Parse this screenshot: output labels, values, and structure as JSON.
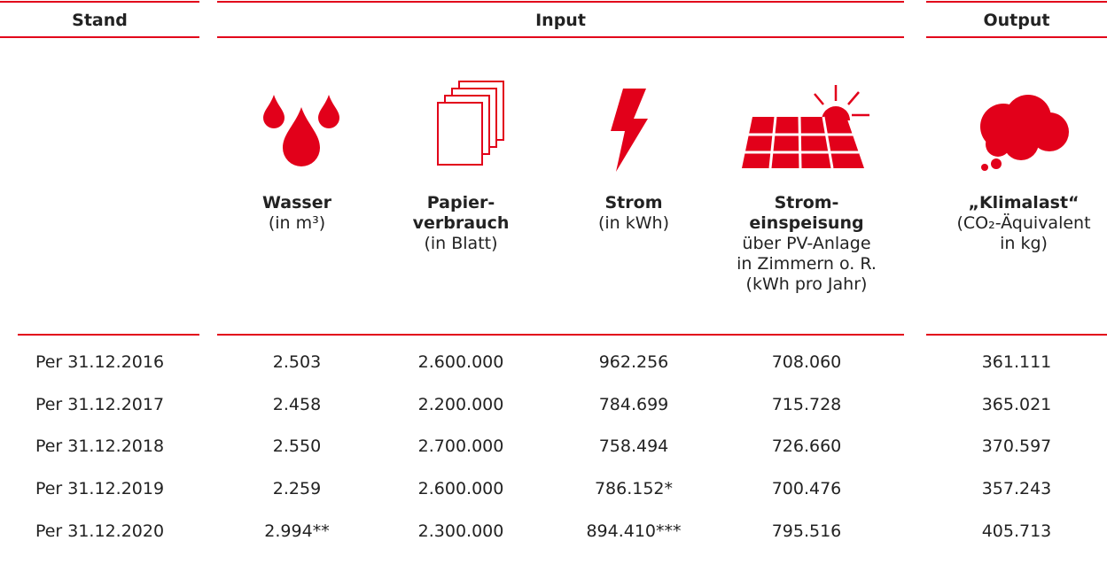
{
  "header": {
    "stand": "Stand",
    "input": "Input",
    "output": "Output"
  },
  "columns": [
    {
      "title": [
        "Wasser"
      ],
      "sub": [
        "(in m³)"
      ]
    },
    {
      "title": [
        "Papier-",
        "verbrauch"
      ],
      "sub": [
        "(in Blatt)"
      ]
    },
    {
      "title": [
        "Strom"
      ],
      "sub": [
        "(in kWh)"
      ]
    },
    {
      "title": [
        "Strom-",
        "einspeisung"
      ],
      "sub": [
        "über PV-Anlage",
        "in Zimmern o. R.",
        "(kWh pro Jahr)"
      ]
    },
    {
      "title": [
        "„Klimalast“"
      ],
      "sub": [
        "(CO₂-Äquivalent",
        "in kg)"
      ]
    }
  ],
  "rows": [
    {
      "label": "Per 31.12.2016",
      "values": [
        "2.503",
        "2.600.000",
        "962.256",
        "708.060",
        "361.111"
      ]
    },
    {
      "label": "Per 31.12.2017",
      "values": [
        "2.458",
        "2.200.000",
        "784.699",
        "715.728",
        "365.021"
      ]
    },
    {
      "label": "Per 31.12.2018",
      "values": [
        "2.550",
        "2.700.000",
        "758.494",
        "726.660",
        "370.597"
      ]
    },
    {
      "label": "Per 31.12.2019",
      "values": [
        "2.259",
        "2.600.000",
        "786.152*",
        "700.476",
        "357.243"
      ]
    },
    {
      "label": "Per 31.12.2020",
      "values": [
        "2.994**",
        "2.300.000",
        "894.410***",
        "795.516",
        "405.713"
      ]
    }
  ]
}
